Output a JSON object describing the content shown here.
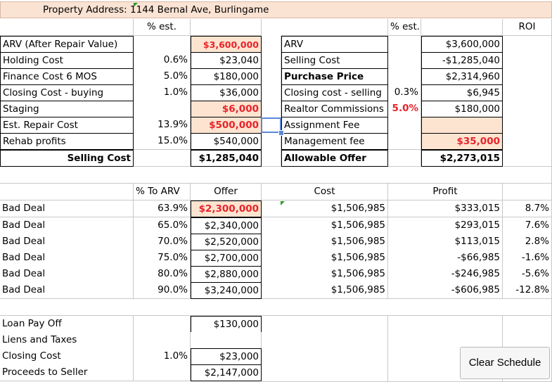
{
  "header": {
    "address_label": "Property Address:",
    "address_value": "1144 Bernal Ave, Burlingame"
  },
  "col_headers": {
    "pct_est_left": "% est.",
    "pct_est_right": "% est.",
    "roi": "ROI"
  },
  "left_rows": [
    {
      "label": "ARV (After Repair Value)",
      "pct": "",
      "value": "$3,600,000"
    },
    {
      "label": "Holding Cost",
      "pct": "0.6%",
      "value": "$23,040"
    },
    {
      "label": "Finance Cost 6 MOS",
      "pct": "5.0%",
      "value": "$180,000"
    },
    {
      "label": "Closing Cost -  buying",
      "pct": "1.0%",
      "value": "$36,000"
    },
    {
      "label": "Staging",
      "pct": "",
      "value": "$6,000"
    },
    {
      "label": "Est. Repair Cost",
      "pct": "13.9%",
      "value": "$500,000"
    },
    {
      "label": "Rehab profits",
      "pct": "15.0%",
      "value": "$540,000"
    },
    {
      "label": "Selling Cost",
      "pct": "",
      "value": "$1,285,040"
    }
  ],
  "right_rows": [
    {
      "label": "ARV",
      "pct": "",
      "value": "$3,600,000"
    },
    {
      "label": "Selling Cost",
      "pct": "",
      "value": "-$1,285,040"
    },
    {
      "label": "Purchase Price",
      "pct": "",
      "value": "$2,314,960"
    },
    {
      "label": "Closing cost -  selling",
      "pct": "0.3%",
      "value": "$6,945"
    },
    {
      "label": "Realtor Commissions",
      "pct": "5.0%",
      "value": "$180,000"
    },
    {
      "label": "Assignment Fee",
      "pct": "",
      "value": ""
    },
    {
      "label": "Management fee",
      "pct": "",
      "value": "$35,000"
    },
    {
      "label": "Allowable Offer",
      "pct": "",
      "value": "$2,273,015"
    }
  ],
  "deals_headers": {
    "pct": "% To ARV",
    "offer": "Offer",
    "cost": "Cost",
    "profit": "Profit"
  },
  "deals": [
    {
      "label": "Bad Deal",
      "pct": "63.9%",
      "offer": "$2,300,000",
      "cost": "$1,506,985",
      "profit": "$333,015",
      "roi": "8.7%"
    },
    {
      "label": "Bad Deal",
      "pct": "65.0%",
      "offer": "$2,340,000",
      "cost": "$1,506,985",
      "profit": "$293,015",
      "roi": "7.6%"
    },
    {
      "label": "Bad Deal",
      "pct": "70.0%",
      "offer": "$2,520,000",
      "cost": "$1,506,985",
      "profit": "$113,015",
      "roi": "2.8%"
    },
    {
      "label": "Bad Deal",
      "pct": "75.0%",
      "offer": "$2,700,000",
      "cost": "$1,506,985",
      "profit": "-$66,985",
      "roi": "-1.6%"
    },
    {
      "label": "Bad Deal",
      "pct": "80.0%",
      "offer": "$2,880,000",
      "cost": "$1,506,985",
      "profit": "-$246,985",
      "roi": "-5.6%"
    },
    {
      "label": "Bad Deal",
      "pct": "90.0%",
      "offer": "$3,240,000",
      "cost": "$1,506,985",
      "profit": "-$606,985",
      "roi": "-12.8%"
    }
  ],
  "payoff_rows": [
    {
      "label": "Loan Pay Off",
      "pct": "",
      "value": "$130,000"
    },
    {
      "label": "Liens and Taxes",
      "pct": "",
      "value": ""
    },
    {
      "label": "Closing Cost",
      "pct": "1.0%",
      "value": "$23,000"
    },
    {
      "label": "Proceeds to Seller",
      "pct": "",
      "value": "$2,147,000"
    }
  ],
  "buttons": {
    "clear_schedule": "Clear Schedule"
  },
  "colors": {
    "input_fill": "#fde4d0",
    "highlight_text": "#e8232a",
    "selection": "#5b87d6"
  }
}
